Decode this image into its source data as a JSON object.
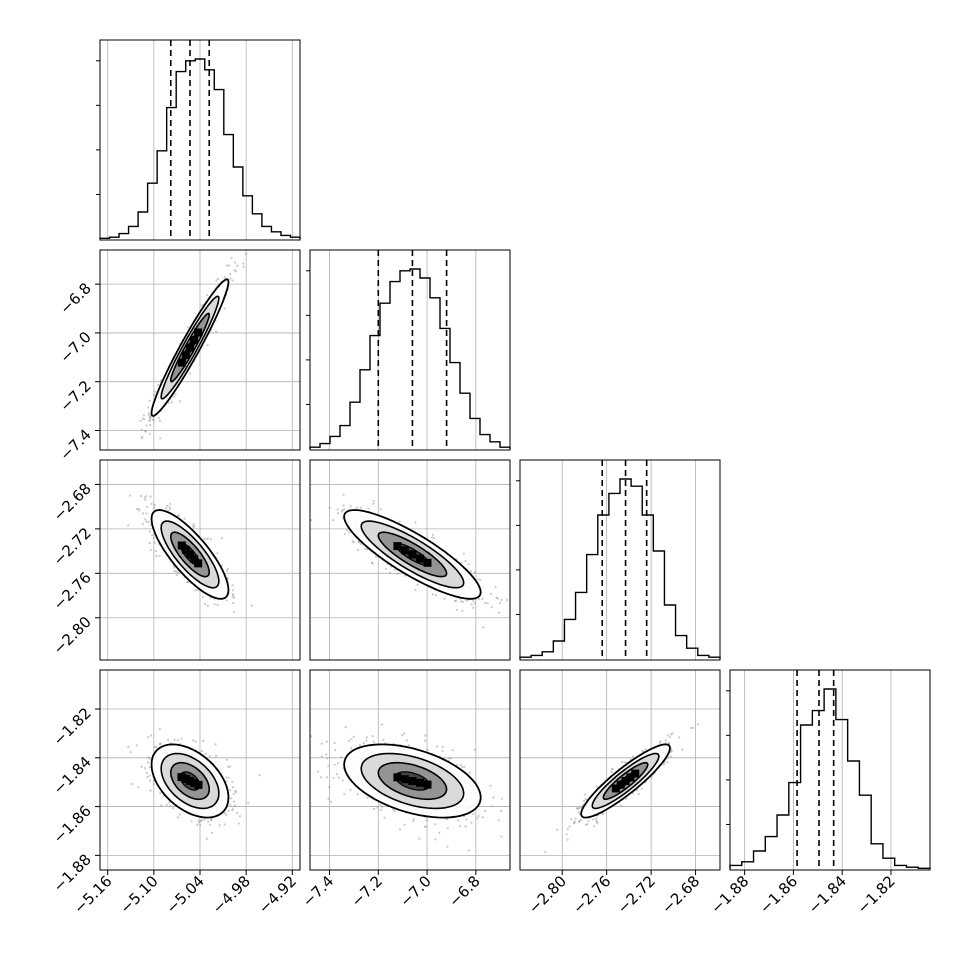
{
  "chart_data": {
    "type": "corner",
    "parameters": [
      {
        "range": [
          -5.17,
          -4.91
        ],
        "ticks": [
          -5.16,
          -5.1,
          -5.04,
          -4.98,
          -4.92
        ],
        "tick_labels": [
          "−5.16",
          "−5.10",
          "−5.04",
          "−4.98",
          "−4.92"
        ],
        "quantiles": [
          -5.078,
          -5.053,
          -5.028
        ]
      },
      {
        "range": [
          -7.48,
          -6.66
        ],
        "ticks": [
          -7.4,
          -7.2,
          -7.0,
          -6.8
        ],
        "tick_labels": [
          "−7.4",
          "−7.2",
          "−7.0",
          "−6.8"
        ],
        "quantiles": [
          -7.2,
          -7.06,
          -6.92
        ]
      },
      {
        "range": [
          -2.838,
          -2.658
        ],
        "ticks": [
          -2.8,
          -2.76,
          -2.72,
          -2.68
        ],
        "tick_labels": [
          "−2.80",
          "−2.76",
          "−2.72",
          "−2.68"
        ],
        "quantiles": [
          -2.764,
          -2.743,
          -2.724
        ]
      },
      {
        "range": [
          -1.886,
          -1.804
        ],
        "ticks": [
          -1.88,
          -1.86,
          -1.84,
          -1.82
        ],
        "tick_labels": [
          "−1.88",
          "−1.86",
          "−1.84",
          "−1.82"
        ],
        "quantiles": [
          -1.8585,
          -1.8495,
          -1.8435
        ]
      }
    ],
    "histograms": [
      [
        0.004,
        0.01,
        0.03,
        0.07,
        0.15,
        0.31,
        0.49,
        0.73,
        0.93,
        0.99,
        1.0,
        0.94,
        0.83,
        0.58,
        0.4,
        0.24,
        0.14,
        0.07,
        0.04,
        0.02,
        0.01
      ],
      [
        0.01,
        0.03,
        0.07,
        0.13,
        0.26,
        0.44,
        0.63,
        0.81,
        0.93,
        0.99,
        1.0,
        0.95,
        0.84,
        0.67,
        0.48,
        0.31,
        0.17,
        0.08,
        0.04,
        0.01
      ],
      [
        0.01,
        0.02,
        0.04,
        0.1,
        0.22,
        0.37,
        0.58,
        0.8,
        0.92,
        1.0,
        0.96,
        0.8,
        0.6,
        0.3,
        0.13,
        0.06,
        0.02,
        0.01
      ],
      [
        0.02,
        0.04,
        0.1,
        0.18,
        0.3,
        0.48,
        0.8,
        0.88,
        1.0,
        0.83,
        0.6,
        0.41,
        0.14,
        0.06,
        0.02,
        0.01,
        0.004
      ]
    ],
    "pairs": [
      {
        "row": 1,
        "col": 0,
        "mean": [
          -5.053,
          -7.06
        ],
        "std": [
          0.025,
          0.14
        ],
        "rho": 0.96
      },
      {
        "row": 2,
        "col": 0,
        "mean": [
          -5.053,
          -2.743
        ],
        "std": [
          0.025,
          0.02
        ],
        "rho": -0.8
      },
      {
        "row": 2,
        "col": 1,
        "mean": [
          -7.06,
          -2.743
        ],
        "std": [
          0.14,
          0.02
        ],
        "rho": -0.85
      },
      {
        "row": 3,
        "col": 0,
        "mean": [
          -5.053,
          -1.8495
        ],
        "std": [
          0.025,
          0.0075
        ],
        "rho": -0.45
      },
      {
        "row": 3,
        "col": 1,
        "mean": [
          -7.06,
          -1.8495
        ],
        "std": [
          0.14,
          0.0075
        ],
        "rho": -0.45
      },
      {
        "row": 3,
        "col": 2,
        "mean": [
          -2.743,
          -1.8495
        ],
        "std": [
          0.02,
          0.0075
        ],
        "rho": 0.9
      }
    ],
    "grid": true,
    "colors": {
      "line": "#000000",
      "grid": "#b0b0b0",
      "points": "#888888",
      "fill_dark": "#000000",
      "fill_light": "#ffffff"
    }
  }
}
